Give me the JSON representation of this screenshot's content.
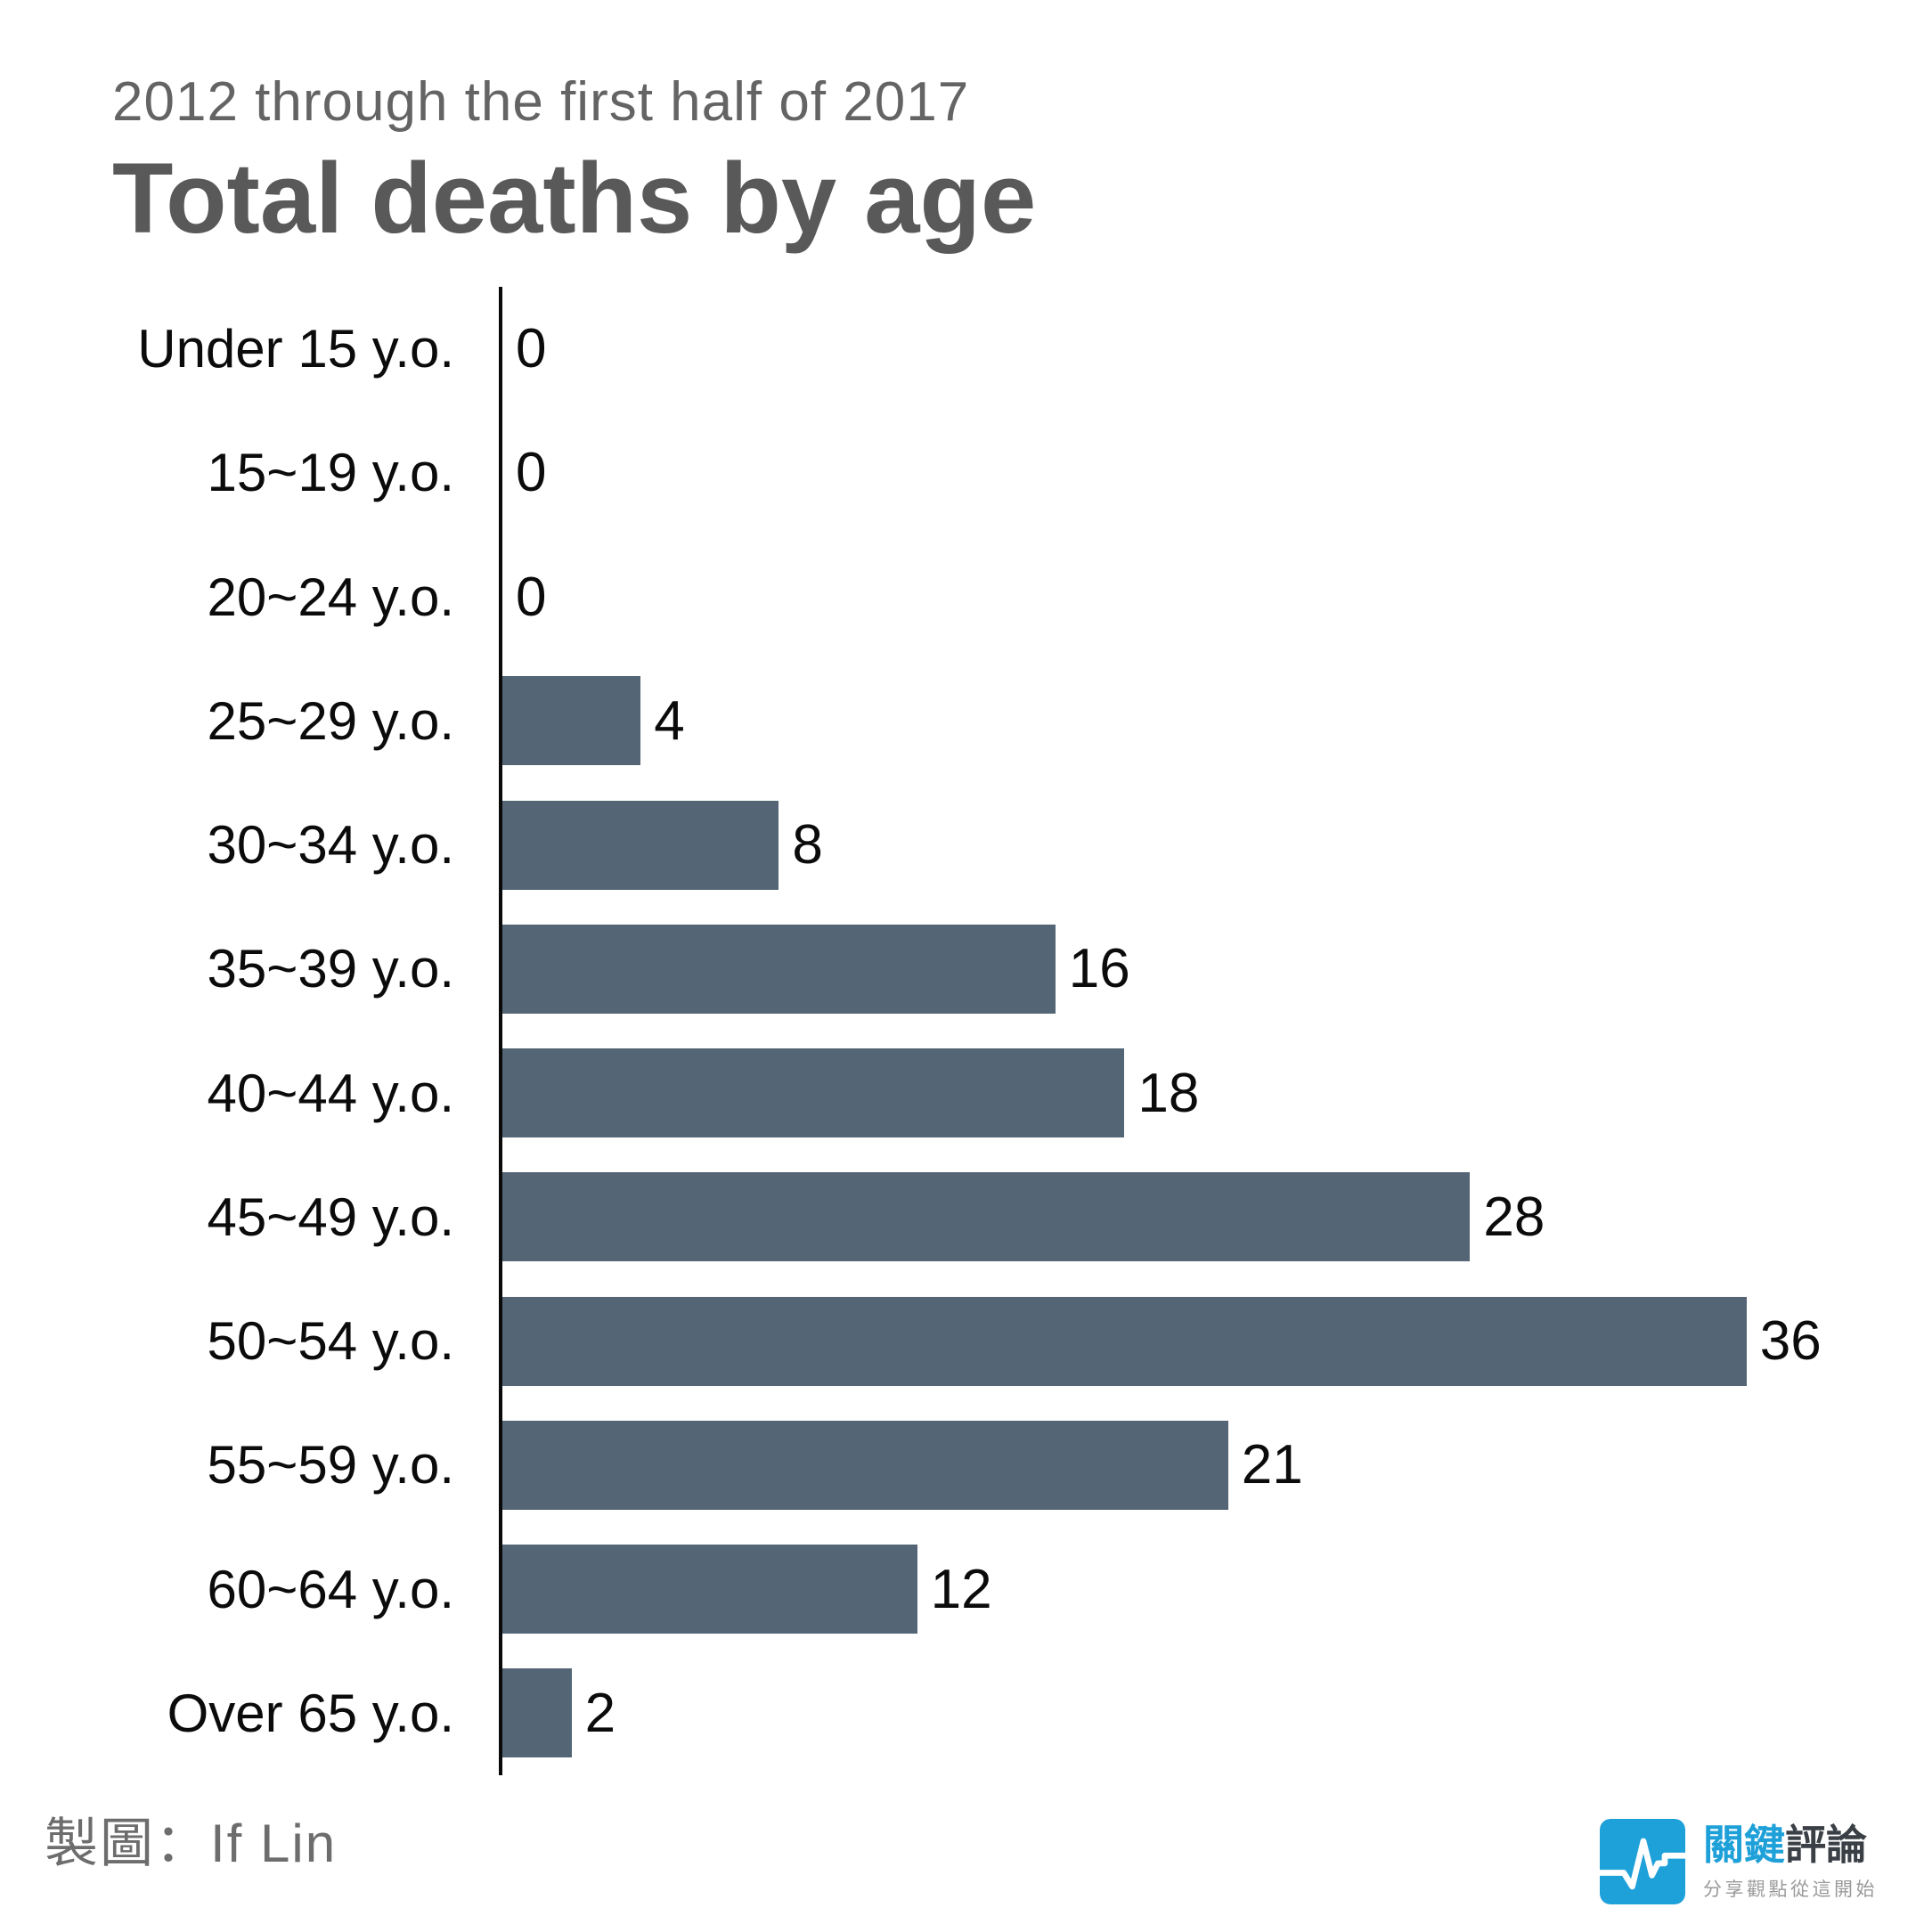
{
  "header": {
    "subtitle": "2012 through the first half of 2017",
    "title": "Total deaths by age"
  },
  "chart_data": {
    "type": "bar",
    "orientation": "horizontal",
    "title": "Total deaths by age",
    "subtitle": "2012 through the first half of 2017",
    "categories": [
      "Under 15 y.o.",
      "15~19 y.o.",
      "20~24 y.o.",
      "25~29 y.o.",
      "30~34 y.o.",
      "35~39 y.o.",
      "40~44 y.o.",
      "45~49 y.o.",
      "50~54 y.o.",
      "55~59 y.o.",
      "60~64 y.o.",
      "Over 65 y.o."
    ],
    "values": [
      0,
      0,
      0,
      4,
      8,
      16,
      18,
      28,
      36,
      21,
      12,
      2
    ],
    "xlabel": "",
    "ylabel": "",
    "xlim": [
      0,
      36
    ],
    "grid": false,
    "legend": "none",
    "value_labels_shown": true,
    "bar_color": "#546575",
    "axis_color": "#0a0a0a",
    "label_color": "#0b0b0b"
  },
  "footer": {
    "credit": "製圖：If Lin"
  },
  "logo": {
    "brand_primary": "關鍵",
    "brand_secondary": "評論",
    "tagline": "分享觀點從這開始",
    "brand_color": "#1EA0D9",
    "brand_secondary_color": "#3A4046",
    "icon": "pulse-line-icon"
  }
}
